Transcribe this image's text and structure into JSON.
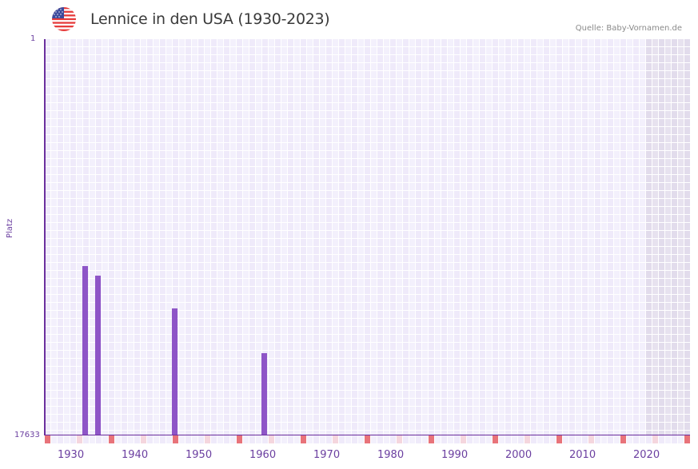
{
  "header": {
    "title": "Lennice in den USA (1930-2023)",
    "source": "Quelle: Baby-Vornamen.de",
    "flag_icon": "us-flag-icon"
  },
  "colors": {
    "bar": "#8e55c7",
    "axis": "#6b2f9e",
    "label": "#6b3fa0",
    "cell_a": "#efeafa",
    "cell_b": "#f3f0fc",
    "cell_future_a": "#e2dcec",
    "cell_future_b": "#e7e2ef",
    "marker_decade": "#e8737a",
    "marker_half": "#f5d6de"
  },
  "chart_data": {
    "type": "bar",
    "title": "Lennice in den USA (1930-2023)",
    "xlabel": "",
    "ylabel": "Platz",
    "ylim": [
      17633,
      1
    ],
    "y_ticks": [
      "1",
      "17633"
    ],
    "x_range": [
      1928,
      2028
    ],
    "x_ticks": [
      "1930",
      "1940",
      "1950",
      "1960",
      "1970",
      "1980",
      "1990",
      "2000",
      "2010",
      "2020"
    ],
    "shaded_future_from": 2022,
    "grid": true,
    "series": [
      {
        "name": "Platz",
        "x": [
          1934,
          1936,
          1948,
          1962
        ],
        "values": [
          10097,
          10523,
          11981,
          13972
        ]
      }
    ]
  }
}
